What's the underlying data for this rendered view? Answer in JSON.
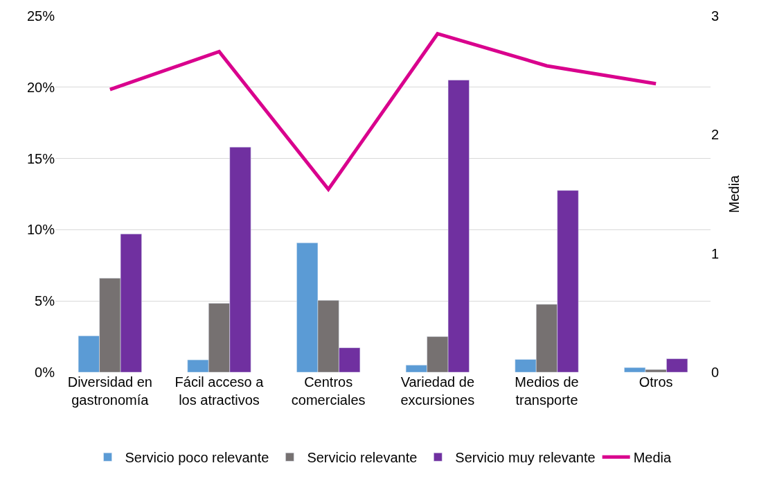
{
  "chart_data": {
    "type": "bar",
    "categories": [
      "Diversidad en gastronomía",
      "Fácil acceso a los atractivos",
      "Centros comerciales",
      "Variedad de excursiones",
      "Medios de transporte",
      "Otros"
    ],
    "series": [
      {
        "name": "Servicio poco relevante",
        "color": "#5b9bd5",
        "values": [
          2.55,
          0.87,
          9.08,
          0.5,
          0.9,
          0.33
        ]
      },
      {
        "name": "Servicio relevante",
        "color": "#767171",
        "values": [
          6.6,
          4.84,
          5.05,
          2.5,
          4.77,
          0.19
        ]
      },
      {
        "name": "Servicio muy relevante",
        "color": "#7030a0",
        "values": [
          9.7,
          15.8,
          1.72,
          20.5,
          12.76,
          0.95
        ]
      },
      {
        "name": "Media",
        "type": "line",
        "axis": "y2",
        "color": "#d9008d",
        "values": [
          2.38,
          2.7,
          1.54,
          2.85,
          2.58,
          2.43
        ]
      }
    ],
    "ylim": [
      0,
      25
    ],
    "yticks": [
      {
        "value": 0,
        "label": "0%"
      },
      {
        "value": 5,
        "label": "5%"
      },
      {
        "value": 10,
        "label": "10%"
      },
      {
        "value": 15,
        "label": "15%"
      },
      {
        "value": 20,
        "label": "20%"
      },
      {
        "value": 25,
        "label": "25%"
      }
    ],
    "y2lim": [
      0,
      3
    ],
    "y2ticks": [
      0,
      1,
      2,
      3
    ],
    "y2label": "Media",
    "grid": "y",
    "legend": "bottom",
    "marker": "none"
  }
}
